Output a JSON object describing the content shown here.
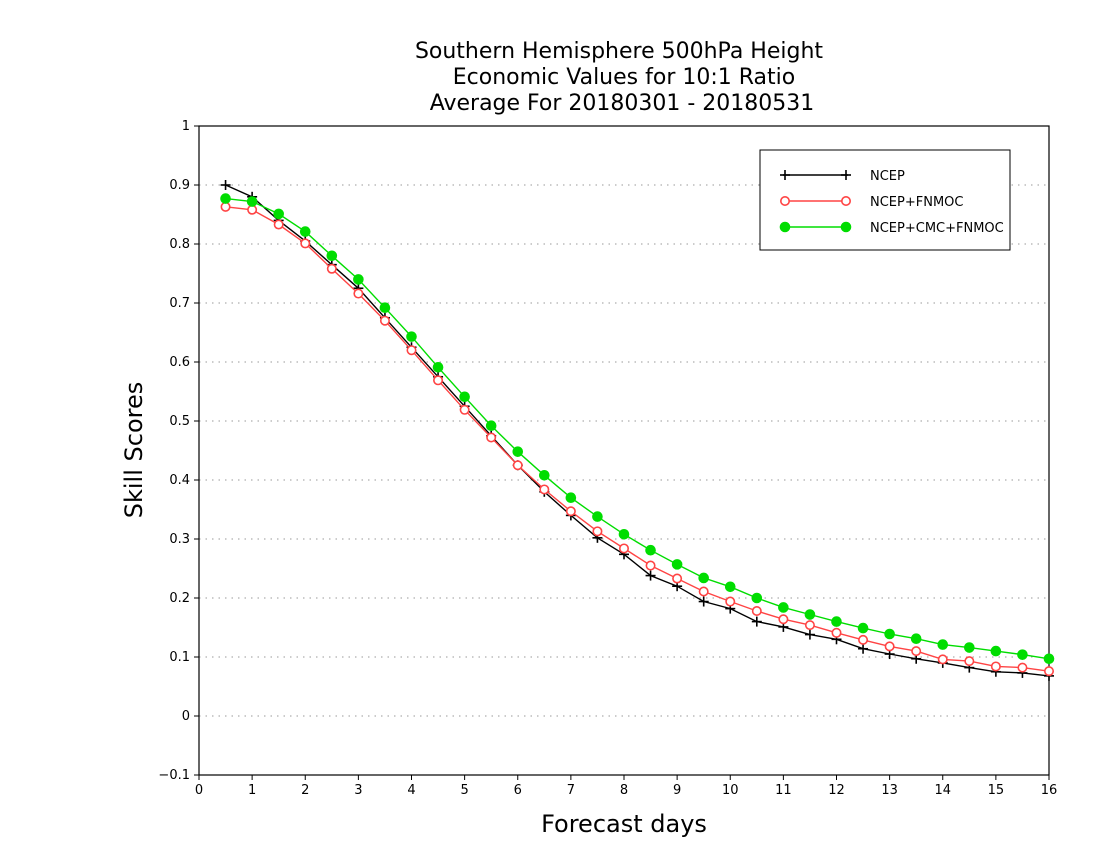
{
  "chart_data": {
    "type": "line",
    "title_lines": [
      "Southern Hemisphere 500hPa Height",
      "Economic Values for 10:1 Ratio",
      "Average For 20180301 - 20180531"
    ],
    "xlabel": "Forecast days",
    "ylabel": "Skill Scores",
    "xlim": [
      0,
      16
    ],
    "ylim": [
      -0.1,
      1
    ],
    "xticks": [
      "0",
      "1",
      "2",
      "3",
      "4",
      "5",
      "6",
      "7",
      "8",
      "9",
      "10",
      "11",
      "12",
      "13",
      "14",
      "15",
      "16"
    ],
    "yticks": [
      "−0.1",
      "0",
      "0.1",
      "0.2",
      "0.3",
      "0.4",
      "0.5",
      "0.6",
      "0.7",
      "0.8",
      "0.9",
      "1"
    ],
    "grid": "horizontal dotted",
    "legend_position": "top-right",
    "x": [
      0.5,
      1,
      1.5,
      2,
      2.5,
      3,
      3.5,
      4,
      4.5,
      5,
      5.5,
      6,
      6.5,
      7,
      7.5,
      8,
      8.5,
      9,
      9.5,
      10,
      10.5,
      11,
      11.5,
      12,
      12.5,
      13,
      13.5,
      14,
      14.5,
      15,
      15.5,
      16
    ],
    "series": [
      {
        "name": "NCEP",
        "color": "#000000",
        "marker": "plus",
        "values": [
          0.9,
          0.88,
          0.84,
          0.805,
          0.765,
          0.725,
          0.675,
          0.625,
          0.575,
          0.525,
          0.475,
          0.425,
          0.38,
          0.34,
          0.302,
          0.274,
          0.238,
          0.22,
          0.194,
          0.182,
          0.16,
          0.151,
          0.138,
          0.13,
          0.114,
          0.105,
          0.097,
          0.09,
          0.082,
          0.075,
          0.073,
          0.068
        ]
      },
      {
        "name": "NCEP+FNMOC",
        "color": "#ff4444",
        "marker": "open-circle",
        "values": [
          0.863,
          0.858,
          0.833,
          0.801,
          0.758,
          0.716,
          0.67,
          0.62,
          0.569,
          0.519,
          0.472,
          0.425,
          0.384,
          0.347,
          0.313,
          0.284,
          0.255,
          0.233,
          0.211,
          0.194,
          0.178,
          0.164,
          0.154,
          0.141,
          0.129,
          0.118,
          0.11,
          0.096,
          0.093,
          0.084,
          0.082,
          0.076
        ]
      },
      {
        "name": "NCEP+CMC+FNMOC",
        "color": "#00dd00",
        "marker": "filled-circle",
        "values": [
          0.877,
          0.872,
          0.851,
          0.821,
          0.78,
          0.74,
          0.692,
          0.643,
          0.591,
          0.541,
          0.492,
          0.448,
          0.408,
          0.37,
          0.338,
          0.308,
          0.281,
          0.257,
          0.234,
          0.219,
          0.2,
          0.184,
          0.172,
          0.16,
          0.149,
          0.139,
          0.131,
          0.121,
          0.116,
          0.11,
          0.104,
          0.097
        ]
      }
    ]
  }
}
